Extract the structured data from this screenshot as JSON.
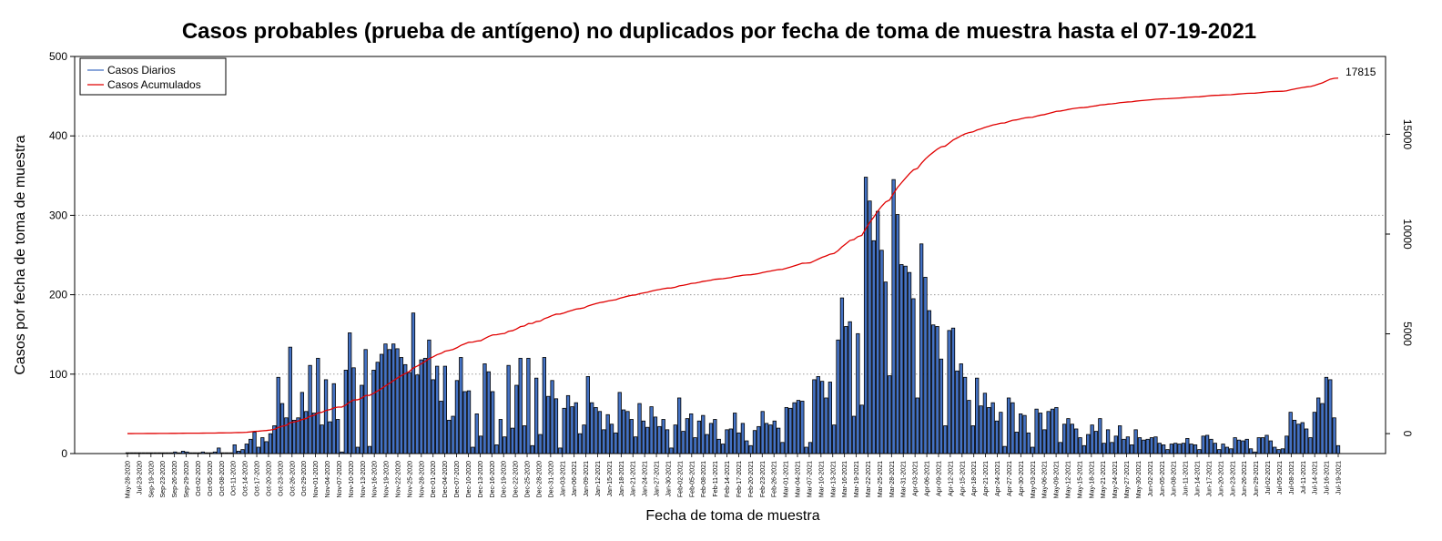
{
  "chart_data": {
    "type": "bar",
    "title": "Casos probables (prueba de antígeno) no duplicados por fecha de toma de muestra hasta el 07-19-2021",
    "xlabel": "Fecha de toma de muestra",
    "ylabel": "Casos por fecha de toma de muestra",
    "ylim": [
      0,
      500
    ],
    "y2lim": [
      -1000,
      18900
    ],
    "yticks": [
      0,
      100,
      200,
      300,
      400,
      500
    ],
    "y2ticks": [
      0,
      5000,
      10000,
      15000
    ],
    "grid": "horizontal dotted",
    "legend_position": "top-left",
    "end_label": "17815",
    "colors": {
      "bars": "#4472C4",
      "bar_edge": "#000000",
      "line": "#E00000",
      "grid": "#999999"
    },
    "series": [
      {
        "name": "Casos Diarios",
        "type": "bar"
      },
      {
        "name": "Casos Acumulados",
        "type": "line",
        "axis": "right"
      }
    ],
    "dates": [
      "May-28-2020",
      "Jul-23-2020",
      "Sep-19-2020",
      "Sep-23-2020",
      "Sep-26-2020",
      "Sep-29-2020",
      "Oct-02-2020",
      "Oct-05-2020",
      "Oct-08-2020",
      "Oct-11-2020",
      "Oct-14-2020",
      "Oct-17-2020",
      "Oct-20-2020",
      "Oct-23-2020",
      "Oct-26-2020",
      "Oct-29-2020",
      "Nov-01-2020",
      "Nov-04-2020",
      "Nov-07-2020",
      "Nov-10-2020",
      "Nov-13-2020",
      "Nov-16-2020",
      "Nov-19-2020",
      "Nov-22-2020",
      "Nov-25-2020",
      "Nov-28-2020",
      "Dec-01-2020",
      "Dec-04-2020",
      "Dec-07-2020",
      "Dec-10-2020",
      "Dec-13-2020",
      "Dec-16-2020",
      "Dec-19-2020",
      "Dec-22-2020",
      "Dec-25-2020",
      "Dec-28-2020",
      "Dec-31-2020",
      "Jan-03-2021",
      "Jan-06-2021",
      "Jan-09-2021",
      "Jan-12-2021",
      "Jan-15-2021",
      "Jan-18-2021",
      "Jan-21-2021",
      "Jan-24-2021",
      "Jan-27-2021",
      "Jan-30-2021",
      "Feb-02-2021",
      "Feb-05-2021",
      "Feb-08-2021",
      "Feb-11-2021",
      "Feb-14-2021",
      "Feb-17-2021",
      "Feb-20-2021",
      "Feb-23-2021",
      "Feb-26-2021",
      "Mar-01-2021",
      "Mar-04-2021",
      "Mar-07-2021",
      "Mar-10-2021",
      "Mar-13-2021",
      "Mar-16-2021",
      "Mar-19-2021",
      "Mar-22-2021",
      "Mar-25-2021",
      "Mar-28-2021",
      "Mar-31-2021",
      "Apr-03-2021",
      "Apr-06-2021",
      "Apr-09-2021",
      "Apr-12-2021",
      "Apr-15-2021",
      "Apr-18-2021",
      "Apr-21-2021",
      "Apr-24-2021",
      "Apr-27-2021",
      "Apr-30-2021",
      "May-03-2021",
      "May-06-2021",
      "May-09-2021",
      "May-12-2021",
      "May-15-2021",
      "May-18-2021",
      "May-21-2021",
      "May-24-2021",
      "May-27-2021",
      "May-30-2021",
      "Jun-02-2021",
      "Jun-05-2021",
      "Jun-08-2021",
      "Jun-11-2021",
      "Jun-14-2021",
      "Jun-17-2021",
      "Jun-20-2021",
      "Jun-23-2021",
      "Jun-26-2021",
      "Jun-29-2021",
      "Jul-02-2021",
      "Jul-05-2021",
      "Jul-08-2021",
      "Jul-11-2021",
      "Jul-14-2021",
      "Jul-16-2021",
      "Jul-19-2021"
    ],
    "daily": [
      1,
      1,
      1,
      1,
      1,
      1,
      1,
      1,
      1,
      1,
      1,
      1,
      2,
      1,
      3,
      2,
      1,
      1,
      1,
      2,
      1,
      1,
      2,
      7,
      1,
      1,
      1,
      11,
      3,
      5,
      12,
      18,
      27,
      8,
      20,
      15,
      25,
      35,
      96,
      63,
      45,
      134,
      42,
      45,
      77,
      53,
      111,
      51,
      120,
      36,
      93,
      40,
      88,
      43,
      2,
      105,
      152,
      108,
      8,
      86,
      131,
      9,
      105,
      115,
      125,
      138,
      131,
      138,
      132,
      121,
      112,
      102,
      177,
      99,
      118,
      120,
      143,
      93,
      110,
      66,
      110,
      42,
      47,
      92,
      121,
      78,
      79,
      8,
      50,
      22,
      113,
      103,
      78,
      11,
      43,
      21,
      111,
      32,
      86,
      120,
      35,
      120,
      10,
      95,
      24,
      121,
      72,
      92,
      69,
      7,
      57,
      73,
      59,
      64,
      25,
      36,
      97,
      64,
      58,
      53,
      30,
      49,
      37,
      26,
      77,
      55,
      53,
      43,
      21,
      63,
      41,
      33,
      59,
      46,
      34,
      43,
      30,
      7,
      36,
      70,
      28,
      44,
      50,
      20,
      41,
      48,
      24,
      38,
      43,
      18,
      12,
      30,
      31,
      51,
      26,
      38,
      16,
      10,
      29,
      34,
      53,
      38,
      36,
      41,
      32,
      14,
      58,
      57,
      64,
      67,
      66,
      8,
      14,
      93,
      97,
      91,
      70,
      90,
      36,
      143,
      196,
      160,
      166,
      47,
      151,
      61,
      348,
      318,
      268,
      305,
      256,
      216,
      98,
      345,
      301,
      238,
      236,
      228,
      195,
      70,
      264,
      222,
      180,
      162,
      160,
      119,
      35,
      155,
      158,
      104,
      113,
      96,
      67,
      35,
      95,
      60,
      76,
      58,
      64,
      41,
      52,
      9,
      70,
      64,
      27,
      50,
      48,
      26,
      8,
      56,
      51,
      30,
      53,
      56,
      58,
      14,
      37,
      44,
      37,
      31,
      20,
      10,
      24,
      36,
      28,
      44,
      13,
      30,
      14,
      22,
      35,
      18,
      21,
      11,
      30,
      20,
      17,
      18,
      20,
      21,
      13,
      11,
      5,
      12,
      13,
      12,
      13,
      19,
      12,
      11,
      5,
      22,
      23,
      18,
      13,
      5,
      12,
      8,
      6,
      20,
      17,
      16,
      18,
      6,
      2,
      20,
      20,
      23,
      16,
      8,
      5,
      6,
      22,
      52,
      42,
      37,
      39,
      31,
      20,
      52,
      70,
      63,
      96,
      93,
      45,
      10
    ]
  }
}
